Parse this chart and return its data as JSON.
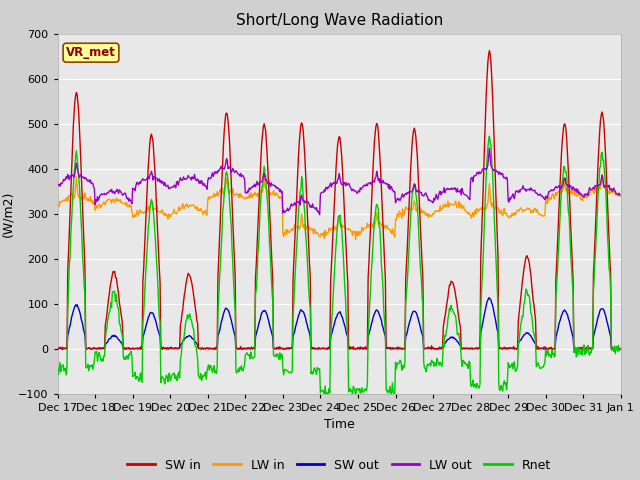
{
  "title": "Short/Long Wave Radiation",
  "ylabel": "(W/m2)",
  "xlabel": "Time",
  "ylim": [
    -100,
    700
  ],
  "yticks": [
    -100,
    0,
    100,
    200,
    300,
    400,
    500,
    600,
    700
  ],
  "colors": {
    "SW_in": "#cc0000",
    "LW_in": "#ff9900",
    "SW_out": "#0000cc",
    "LW_out": "#9900cc",
    "Rnet": "#00cc00"
  },
  "station_label": "VR_met",
  "n_days": 15,
  "xtick_labels": [
    "Dec 17",
    "Dec 18",
    "Dec 19",
    "Dec 20",
    "Dec 21",
    "Dec 22",
    "Dec 23",
    "Dec 24",
    "Dec 25",
    "Dec 26",
    "Dec 27",
    "Dec 28",
    "Dec 29",
    "Dec 30",
    "Dec 31",
    "Jan 1"
  ],
  "linewidth": 1.0,
  "sw_in_peaks": [
    570,
    170,
    475,
    165,
    525,
    500,
    500,
    470,
    500,
    490,
    150,
    660,
    205,
    500,
    525
  ],
  "lw_in_base": [
    320,
    310,
    290,
    295,
    330,
    330,
    250,
    250,
    255,
    290,
    300,
    295,
    290,
    330,
    335
  ],
  "lw_out_base": [
    360,
    325,
    355,
    355,
    375,
    345,
    300,
    345,
    348,
    325,
    330,
    375,
    330,
    338,
    338
  ]
}
